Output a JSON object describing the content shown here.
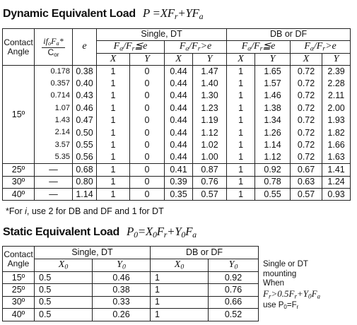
{
  "dynamic": {
    "title": "Dynamic Equivalent Load",
    "formula": [
      {
        "text": "P ="
      },
      {
        "text": "XF"
      },
      {
        "sub": "r"
      },
      {
        "text": "+YF"
      },
      {
        "sub": "a"
      }
    ],
    "header": {
      "angle": "Contact Angle",
      "ratio_top": [
        {
          "text": "i"
        },
        {
          "text": "f"
        },
        {
          "sub": "o"
        },
        {
          "text": "F"
        },
        {
          "sub": "a"
        },
        {
          "text": "*"
        }
      ],
      "ratio_bottom": [
        {
          "text": "C"
        },
        {
          "sub": "or"
        }
      ],
      "e": "e",
      "single": "Single, DT",
      "double": "DB or DF",
      "cond_le": [
        {
          "text": "F"
        },
        {
          "sub": "a"
        },
        {
          "text": "/F"
        },
        {
          "sub": "r"
        },
        {
          "text": "≦e"
        }
      ],
      "cond_gt": [
        {
          "text": "F"
        },
        {
          "sub": "a"
        },
        {
          "text": "/F"
        },
        {
          "sub": "r"
        },
        {
          "text": ">e"
        }
      ],
      "x": "X",
      "y": "Y"
    },
    "groups": [
      {
        "angle": "15º",
        "rows": [
          [
            "0.178",
            "0.38",
            "1",
            "0",
            "0.44",
            "1.47",
            "1",
            "1.65",
            "0.72",
            "2.39"
          ],
          [
            "0.357",
            "0.40",
            "1",
            "0",
            "0.44",
            "1.40",
            "1",
            "1.57",
            "0.72",
            "2.28"
          ],
          [
            "0.714",
            "0.43",
            "1",
            "0",
            "0.44",
            "1.30",
            "1",
            "1.46",
            "0.72",
            "2.11"
          ],
          [
            "1.07",
            "0.46",
            "1",
            "0",
            "0.44",
            "1.23",
            "1",
            "1.38",
            "0.72",
            "2.00"
          ],
          [
            "1.43",
            "0.47",
            "1",
            "0",
            "0.44",
            "1.19",
            "1",
            "1.34",
            "0.72",
            "1.93"
          ],
          [
            "2.14",
            "0.50",
            "1",
            "0",
            "0.44",
            "1.12",
            "1",
            "1.26",
            "0.72",
            "1.82"
          ],
          [
            "3.57",
            "0.55",
            "1",
            "0",
            "0.44",
            "1.02",
            "1",
            "1.14",
            "0.72",
            "1.66"
          ],
          [
            "5.35",
            "0.56",
            "1",
            "0",
            "0.44",
            "1.00",
            "1",
            "1.12",
            "0.72",
            "1.63"
          ]
        ]
      },
      {
        "angle": "25º",
        "rows": [
          [
            "—",
            "0.68",
            "1",
            "0",
            "0.41",
            "0.87",
            "1",
            "0.92",
            "0.67",
            "1.41"
          ]
        ]
      },
      {
        "angle": "30º",
        "rows": [
          [
            "—",
            "0.80",
            "1",
            "0",
            "0.39",
            "0.76",
            "1",
            "0.78",
            "0.63",
            "1.24"
          ]
        ]
      },
      {
        "angle": "40º",
        "rows": [
          [
            "—",
            "1.14",
            "1",
            "0",
            "0.35",
            "0.57",
            "1",
            "0.55",
            "0.57",
            "0.93"
          ]
        ]
      }
    ],
    "footnote": [
      {
        "text": "*For "
      },
      {
        "italic": "i"
      },
      {
        "text": ", use 2 for DB and DF and 1 for DT"
      }
    ]
  },
  "static": {
    "title": "Static Equivalent Load",
    "formula": [
      {
        "text": "P"
      },
      {
        "sub": "0"
      },
      {
        "text": "=X"
      },
      {
        "sub": "0"
      },
      {
        "text": "F"
      },
      {
        "sub": "r"
      },
      {
        "text": "+Y"
      },
      {
        "sub": "0"
      },
      {
        "text": "F"
      },
      {
        "sub": "a"
      }
    ],
    "header": {
      "angle": "Contact Angle",
      "single": "Single, DT",
      "double": "DB or DF",
      "x0": [
        {
          "text": "X"
        },
        {
          "sub": "0"
        }
      ],
      "y0": [
        {
          "text": "Y"
        },
        {
          "sub": "0"
        }
      ]
    },
    "rows": [
      [
        "15º",
        "0.5",
        "0.46",
        "1",
        "0.92"
      ],
      [
        "25º",
        "0.5",
        "0.38",
        "1",
        "0.76"
      ],
      [
        "30º",
        "0.5",
        "0.33",
        "1",
        "0.66"
      ],
      [
        "40º",
        "0.5",
        "0.26",
        "1",
        "0.52"
      ]
    ],
    "note": {
      "line1": "Single or DT",
      "line2": "mounting",
      "line3": "When",
      "condition": [
        {
          "text": "F"
        },
        {
          "sub": "r"
        },
        {
          "text": ">0.5F"
        },
        {
          "sub": "r"
        },
        {
          "text": "+Y"
        },
        {
          "sub": "0"
        },
        {
          "text": "F"
        },
        {
          "sub": "a"
        }
      ],
      "result": [
        {
          "text": "use P"
        },
        {
          "sub": "0"
        },
        {
          "text": "=F"
        },
        {
          "sub": "r"
        }
      ]
    }
  }
}
